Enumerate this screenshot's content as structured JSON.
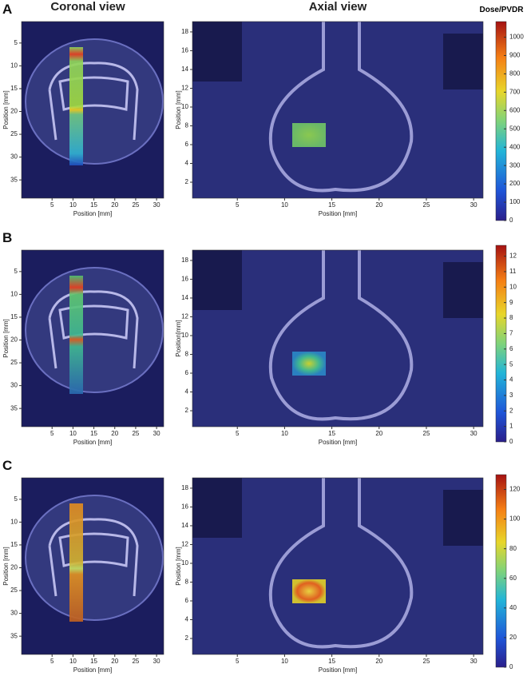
{
  "titles": {
    "coronal": "Coronal view",
    "axial": "Axial view",
    "colorbar": "Dose/PVDR"
  },
  "panels": [
    {
      "label": "A",
      "coronal": {
        "xlabel": "Position [mm]",
        "ylabel": "Position [mm]",
        "xlim": [
          -2.3,
          31.7
        ],
        "xticks": [
          5,
          10,
          15,
          20,
          25,
          30
        ],
        "ylim": [
          39,
          0.3
        ],
        "yticks": [
          5,
          10,
          15,
          20,
          25,
          30,
          35
        ]
      },
      "axial": {
        "xlabel": "Position [mm]",
        "ylabel": "Position [mm]",
        "xlim": [
          0.25,
          31
        ],
        "xticks": [
          5,
          10,
          15,
          20,
          25,
          30
        ],
        "ylim": [
          0.3,
          19.1
        ],
        "yticks": [
          2,
          4,
          6,
          8,
          10,
          12,
          14,
          16,
          18
        ]
      },
      "colorbar": {
        "ylim": [
          0,
          1085
        ],
        "yticks": [
          0,
          100,
          200,
          300,
          400,
          500,
          600,
          700,
          800,
          900,
          1000
        ]
      }
    },
    {
      "label": "B",
      "coronal": {
        "xlabel": "Position [mm]",
        "ylabel": "Position [mm]",
        "xlim": [
          -2.3,
          31.7
        ],
        "xticks": [
          5,
          10,
          15,
          20,
          25,
          30
        ],
        "ylim": [
          39,
          0.3
        ],
        "yticks": [
          5,
          10,
          15,
          20,
          25,
          30,
          35
        ]
      },
      "axial": {
        "xlabel": "Position [mm]",
        "ylabel": "Position[mm]",
        "xlim": [
          0.25,
          31
        ],
        "xticks": [
          5,
          10,
          15,
          20,
          25,
          30
        ],
        "ylim": [
          0.3,
          19.1
        ],
        "yticks": [
          2,
          4,
          6,
          8,
          10,
          12,
          14,
          16,
          18
        ]
      },
      "colorbar": {
        "ylim": [
          0,
          12.7
        ],
        "yticks": [
          0,
          1,
          2,
          3,
          4,
          5,
          6,
          7,
          8,
          9,
          10,
          11,
          12
        ]
      }
    },
    {
      "label": "C",
      "coronal": {
        "xlabel": "Position [mm]",
        "ylabel": "Position [mm]",
        "xlim": [
          -2.3,
          31.7
        ],
        "xticks": [
          5,
          10,
          15,
          20,
          25,
          30
        ],
        "ylim": [
          39,
          0.3
        ],
        "yticks": [
          5,
          10,
          15,
          20,
          25,
          30,
          35
        ]
      },
      "axial": {
        "xlabel": "Position [mm]",
        "ylabel": "Position [mm]",
        "xlim": [
          0.25,
          31
        ],
        "xticks": [
          5,
          10,
          15,
          20,
          25,
          30
        ],
        "ylim": [
          0.3,
          19.1
        ],
        "yticks": [
          2,
          4,
          6,
          8,
          10,
          12,
          14,
          16,
          18
        ]
      },
      "colorbar": {
        "ylim": [
          0,
          130
        ],
        "yticks": [
          0,
          20,
          40,
          60,
          80,
          100,
          120
        ]
      }
    }
  ]
}
